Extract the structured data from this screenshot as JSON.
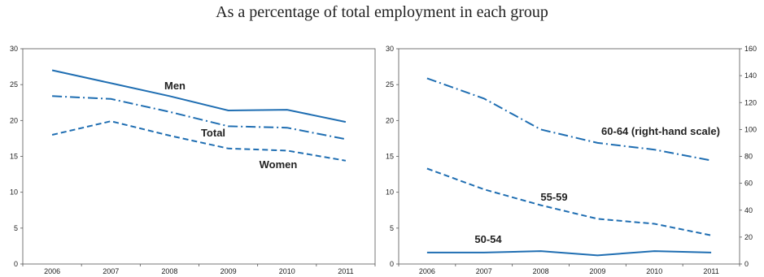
{
  "page": {
    "title": "As a percentage of total employment in each group"
  },
  "colors": {
    "background": "#ffffff",
    "series": "#1f6eb2",
    "axis": "#555555",
    "text": "#222222"
  },
  "chart_data": [
    {
      "type": "line",
      "x": [
        "2006",
        "2007",
        "2008",
        "2009",
        "2010",
        "2011"
      ],
      "ylim": [
        0,
        30
      ],
      "yticks": [
        0,
        5,
        10,
        15,
        20,
        25,
        30
      ],
      "grid": false,
      "series": [
        {
          "name": "Men",
          "style": "solid",
          "values": [
            27.0,
            25.2,
            23.4,
            21.4,
            21.5,
            19.8
          ]
        },
        {
          "name": "Total",
          "style": "dash-dot",
          "values": [
            23.4,
            23.0,
            21.2,
            19.2,
            19.0,
            17.4
          ]
        },
        {
          "name": "Women",
          "style": "dashed",
          "values": [
            18.0,
            19.9,
            17.9,
            16.1,
            15.8,
            14.4
          ]
        }
      ]
    },
    {
      "type": "line",
      "x": [
        "2006",
        "2007",
        "2008",
        "2009",
        "2010",
        "2011"
      ],
      "ylim": [
        0,
        30
      ],
      "yticks": [
        0,
        5,
        10,
        15,
        20,
        25,
        30
      ],
      "y2lim": [
        0,
        160
      ],
      "y2ticks": [
        0,
        20,
        40,
        60,
        80,
        100,
        120,
        140,
        160
      ],
      "grid": false,
      "series": [
        {
          "name": "60-64 (right-hand scale)",
          "style": "dash-dot",
          "axis": "right",
          "values": [
            138,
            123,
            100,
            90,
            85,
            77
          ]
        },
        {
          "name": "55-59",
          "style": "dashed",
          "axis": "left",
          "values": [
            13.3,
            10.4,
            8.2,
            6.3,
            5.6,
            4.0
          ]
        },
        {
          "name": "50-54",
          "style": "solid",
          "axis": "left",
          "values": [
            1.6,
            1.6,
            1.8,
            1.2,
            1.8,
            1.6
          ]
        }
      ]
    }
  ]
}
